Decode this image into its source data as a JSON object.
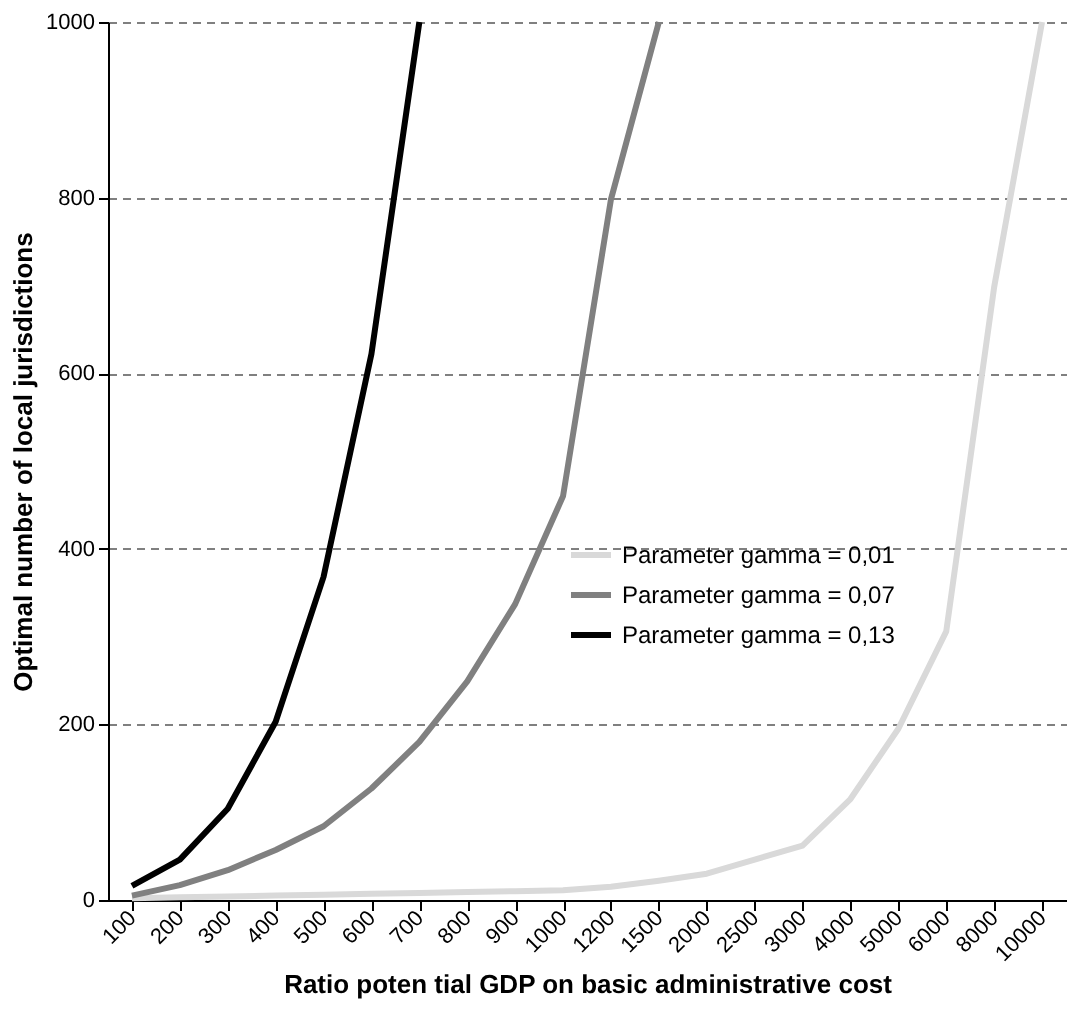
{
  "chart_data": {
    "type": "line",
    "xlabel": "Ratio poten tial GDP on basic  administrative cost",
    "ylabel": "Optimal number of  local jurisdictions",
    "categories": [
      "100",
      "200",
      "300",
      "400",
      "500",
      "600",
      "700",
      "800",
      "900",
      "1000",
      "1200",
      "1500",
      "2000",
      "2500",
      "3000",
      "4000",
      "5000",
      "6000",
      "8000",
      "10000"
    ],
    "series": [
      {
        "name": "Parameter gamma = 0,01",
        "color": "#d9d9d9",
        "values": [
          2,
          3,
          4,
          5,
          6,
          7,
          8,
          9,
          10,
          11,
          15,
          22,
          30,
          46,
          62,
          115,
          195,
          306,
          698,
          1000
        ]
      },
      {
        "name": "Parameter gamma = 0,07",
        "color": "#808080",
        "values": [
          5,
          17,
          34,
          57,
          84,
          127,
          180,
          249,
          337,
          460,
          798,
          1000,
          null,
          null,
          null,
          null,
          null,
          null,
          null,
          null
        ]
      },
      {
        "name": "Parameter gamma = 0,13",
        "color": "#000000",
        "values": [
          16,
          46,
          104,
          203,
          368,
          622,
          1000,
          null,
          null,
          null,
          null,
          null,
          null,
          null,
          null,
          null,
          null,
          null,
          null,
          null
        ]
      }
    ],
    "ylim": [
      0,
      1000
    ],
    "yticks": [
      0,
      200,
      400,
      600,
      800,
      1000
    ],
    "grid": "y",
    "legend": "right",
    "marker": "none",
    "line_style": "solid"
  }
}
